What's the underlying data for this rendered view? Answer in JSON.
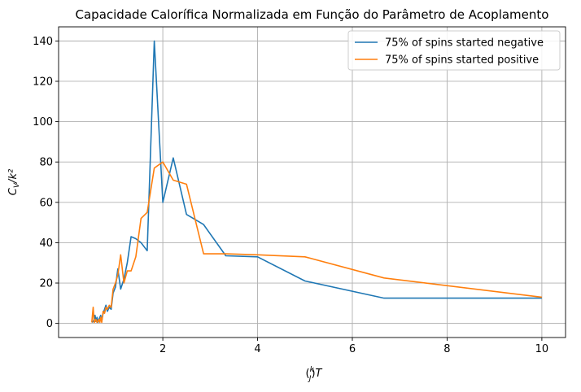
{
  "chart_data": {
    "type": "line",
    "title": "Capacidade Calorífica Normalizada em Função do Parâmetro de Acoplamento",
    "xlabel": "(k/J)T",
    "ylabel": "C_V/k²",
    "xlim": [
      -0.2,
      10.5
    ],
    "ylim": [
      -7,
      147
    ],
    "xticks": [
      2,
      4,
      6,
      8,
      10
    ],
    "yticks": [
      0,
      20,
      40,
      60,
      80,
      100,
      120,
      140
    ],
    "xtick_labels": [
      "2",
      "4",
      "6",
      "8",
      "10"
    ],
    "ytick_labels": [
      "0",
      "20",
      "40",
      "60",
      "80",
      "100",
      "120",
      "140"
    ],
    "grid": true,
    "legend_position": "upper right",
    "series": [
      {
        "name": "75% of spins started negative",
        "color": "#1f77b4",
        "x": [
          0.5,
          0.53,
          0.55,
          0.57,
          0.59,
          0.61,
          0.63,
          0.65,
          0.67,
          0.69,
          0.71,
          0.74,
          0.77,
          0.8,
          0.83,
          0.87,
          0.91,
          0.95,
          1.0,
          1.05,
          1.11,
          1.18,
          1.25,
          1.33,
          1.43,
          1.54,
          1.67,
          1.82,
          2.0,
          2.22,
          2.5,
          2.86,
          3.33,
          4.0,
          5.0,
          6.67,
          10.0
        ],
        "y": [
          0.5,
          1,
          2,
          4,
          1,
          3,
          0.5,
          2,
          3,
          4,
          1,
          5,
          7,
          9,
          6,
          8,
          7,
          15,
          18,
          27,
          17,
          22,
          30,
          43,
          42,
          40,
          36,
          140,
          60,
          82,
          54,
          49,
          33.5,
          33,
          21,
          12.5,
          12.5
        ]
      },
      {
        "name": "75% of spins started positive",
        "color": "#ff7f0e",
        "x": [
          0.5,
          0.53,
          0.55,
          0.57,
          0.59,
          0.61,
          0.63,
          0.65,
          0.67,
          0.69,
          0.71,
          0.74,
          0.77,
          0.8,
          0.83,
          0.87,
          0.91,
          0.95,
          1.0,
          1.05,
          1.11,
          1.18,
          1.25,
          1.33,
          1.43,
          1.54,
          1.67,
          1.82,
          2.0,
          2.22,
          2.5,
          2.86,
          3.33,
          4.0,
          5.0,
          6.67,
          10.0
        ],
        "y": [
          0.5,
          8,
          0.5,
          1,
          2,
          0.5,
          1,
          2,
          0.5,
          3,
          0.5,
          6,
          5,
          8,
          7,
          9,
          8,
          17,
          20,
          24,
          34,
          20,
          26,
          26,
          33,
          52,
          55,
          77,
          80,
          71,
          69,
          34.5,
          34.5,
          34,
          33,
          22.5,
          13
        ]
      }
    ]
  }
}
